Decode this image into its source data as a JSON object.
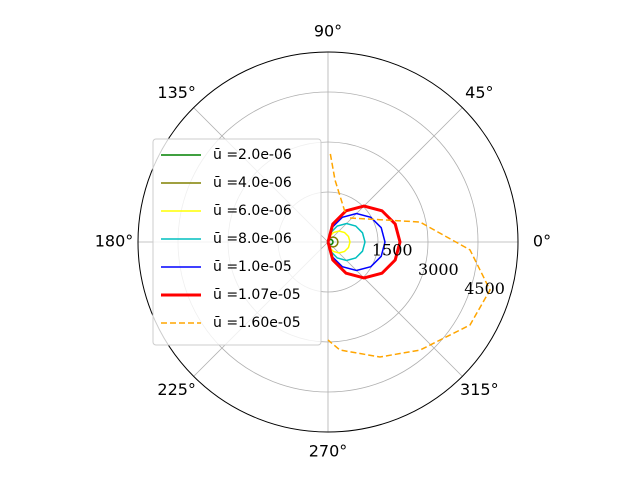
{
  "chart_data": {
    "type": "polar",
    "rlim": [
      0,
      5700
    ],
    "rticks": [
      1500,
      3000,
      4500
    ],
    "thetaticks": [
      {
        "value": 0,
        "label": "0°"
      },
      {
        "value": 45,
        "label": "45°"
      },
      {
        "value": 90,
        "label": "90°"
      },
      {
        "value": 135,
        "label": "135°"
      },
      {
        "value": 180,
        "label": "180°"
      },
      {
        "value": 225,
        "label": "225°"
      },
      {
        "value": 270,
        "label": "270°"
      },
      {
        "value": 315,
        "label": "315°"
      }
    ],
    "grid": true,
    "legend_loc": "center left",
    "series": [
      {
        "name": "ū =2.0e-06",
        "color": "#008000",
        "linewidth": 1.5,
        "dashed": false,
        "theta": [
          -90,
          -75,
          -60,
          -45,
          -30,
          -15,
          0,
          15,
          30,
          45,
          60,
          75,
          90
        ],
        "values": [
          0,
          39,
          75,
          106,
          130,
          145,
          150,
          145,
          130,
          106,
          75,
          39,
          0
        ]
      },
      {
        "name": "ū =4.0e-06",
        "color": "#808000",
        "linewidth": 1.5,
        "dashed": false,
        "theta": [
          -90,
          -75,
          -60,
          -45,
          -30,
          -15,
          0,
          15,
          30,
          45,
          60,
          75,
          90
        ],
        "values": [
          0,
          78,
          150,
          212,
          260,
          290,
          300,
          290,
          260,
          212,
          150,
          78,
          0
        ]
      },
      {
        "name": "ū =6.0e-06",
        "color": "#ffff00",
        "linewidth": 1.5,
        "dashed": false,
        "theta": [
          -90,
          -75,
          -60,
          -45,
          -30,
          -15,
          0,
          15,
          30,
          45,
          60,
          75,
          90
        ],
        "values": [
          0,
          171,
          330,
          467,
          572,
          637,
          660,
          637,
          572,
          467,
          330,
          171,
          0
        ]
      },
      {
        "name": "ū =8.0e-06",
        "color": "#00bfbf",
        "linewidth": 1.5,
        "dashed": false,
        "theta": [
          -90,
          -75,
          -60,
          -45,
          -30,
          -15,
          0,
          15,
          30,
          45,
          60,
          75,
          90
        ],
        "values": [
          0,
          287,
          555,
          785,
          961,
          1072,
          1110,
          1072,
          961,
          785,
          555,
          287,
          0
        ]
      },
      {
        "name": "ū =1.0e-05",
        "color": "#0000ff",
        "linewidth": 1.5,
        "dashed": false,
        "theta": [
          -90,
          -75,
          -60,
          -45,
          -30,
          -15,
          0,
          15,
          30,
          45,
          60,
          75,
          90
        ],
        "values": [
          0,
          443,
          855,
          1209,
          1481,
          1652,
          1710,
          1652,
          1481,
          1209,
          855,
          443,
          0
        ]
      },
      {
        "name": "ū =1.07e-05",
        "color": "#ff0000",
        "linewidth": 3,
        "dashed": false,
        "theta": [
          -90,
          -75,
          -60,
          -45,
          -30,
          -15,
          0,
          15,
          30,
          45,
          60,
          75,
          90
        ],
        "values": [
          0,
          559,
          1080,
          1527,
          1871,
          2086,
          2160,
          2086,
          1871,
          1527,
          1080,
          559,
          0
        ]
      },
      {
        "name": "ū =1.60e-05",
        "color": "#ffa500",
        "linewidth": 1.5,
        "dashed": true,
        "theta": [
          60.5,
          83.6,
          88.7,
          null,
          47.5,
          12.3,
          -3.2,
          -16.5,
          -30.3,
          -49.6,
          -65.7,
          -83.7,
          -90
        ],
        "values": [
          1035,
          1872,
          2700,
          null,
          978,
          2823,
          4266,
          5070,
          4935,
          4257,
          3786,
          3261,
          2940
        ]
      }
    ]
  }
}
